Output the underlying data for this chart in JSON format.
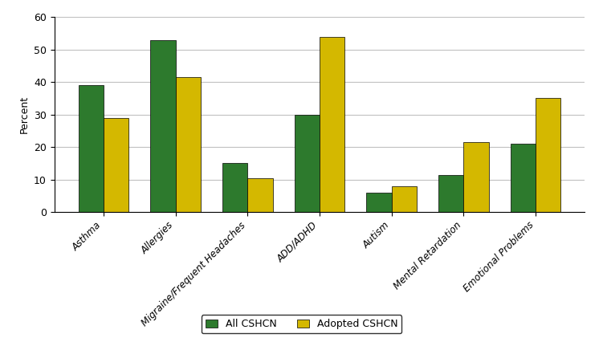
{
  "categories": [
    "Asthma",
    "Allergies",
    "Migraine/Frequent Headaches",
    "ADD/ADHD",
    "Autism",
    "Mental Retardation",
    "Emotional Problems"
  ],
  "all_cshcn": [
    39,
    53,
    15,
    30,
    6,
    11.5,
    21
  ],
  "adopted_cshcn": [
    29,
    41.5,
    10.5,
    54,
    8,
    21.5,
    35
  ],
  "all_color": "#2d7a2d",
  "adopted_color": "#d4b800",
  "ylabel": "Percent",
  "ylim": [
    0,
    60
  ],
  "yticks": [
    0,
    10,
    20,
    30,
    40,
    50,
    60
  ],
  "legend_labels": [
    "All CSHCN",
    "Adopted CSHCN"
  ],
  "bar_width": 0.35,
  "background_color": "#ffffff",
  "grid_color": "#c0c0c0"
}
